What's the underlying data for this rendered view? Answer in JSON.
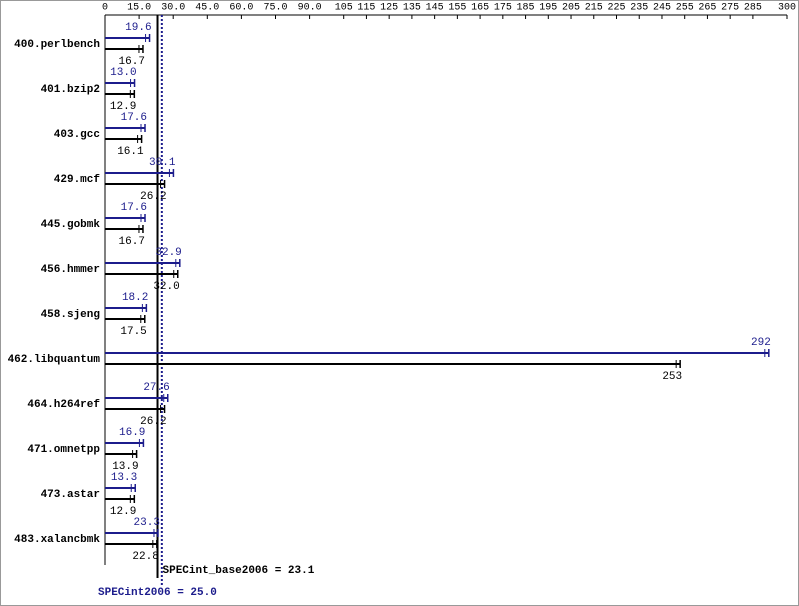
{
  "chart_data": {
    "type": "bar",
    "categories": [
      "400.perlbench",
      "401.bzip2",
      "403.gcc",
      "429.mcf",
      "445.gobmk",
      "456.hmmer",
      "458.sjeng",
      "462.libquantum",
      "464.h264ref",
      "471.omnetpp",
      "473.astar",
      "483.xalancbmk"
    ],
    "series": [
      {
        "color": "#1c1c8c",
        "values": [
          19.6,
          13.0,
          17.6,
          30.1,
          17.6,
          32.9,
          18.2,
          292,
          27.6,
          16.9,
          13.3,
          23.3
        ],
        "value_labels": [
          "19.6",
          "13.0",
          "17.6",
          "30.1",
          "17.6",
          "32.9",
          "18.2",
          "292",
          "27.6",
          "16.9",
          "13.3",
          "23.3"
        ]
      },
      {
        "color": "#000000",
        "values": [
          16.7,
          12.9,
          16.1,
          26.2,
          16.7,
          32.0,
          17.5,
          253,
          26.2,
          13.9,
          12.9,
          22.8
        ],
        "value_labels": [
          "16.7",
          "12.9",
          "16.1",
          "26.2",
          "16.7",
          "32.0",
          "17.5",
          "253",
          "26.2",
          "13.9",
          "12.9",
          "22.8"
        ]
      }
    ],
    "xlim": [
      0,
      300
    ],
    "xticks": [
      0,
      {
        "value": 15,
        "label": "15.0"
      },
      {
        "value": 30,
        "label": "30.0"
      },
      {
        "value": 45,
        "label": "45.0"
      },
      {
        "value": 60,
        "label": "60.0"
      },
      {
        "value": 75,
        "label": "75.0"
      },
      {
        "value": 90,
        "label": "90.0"
      },
      105,
      115,
      125,
      135,
      145,
      155,
      165,
      175,
      185,
      195,
      205,
      215,
      225,
      235,
      245,
      255,
      265,
      275,
      285,
      300
    ],
    "reference_lines": [
      {
        "value": 23.1,
        "label": "SPECint_base2006 = 23.1",
        "color": "#000000"
      },
      {
        "value": 25.0,
        "label": "SPECint2006 = 25.0",
        "color": "#1c1c8c"
      }
    ]
  }
}
